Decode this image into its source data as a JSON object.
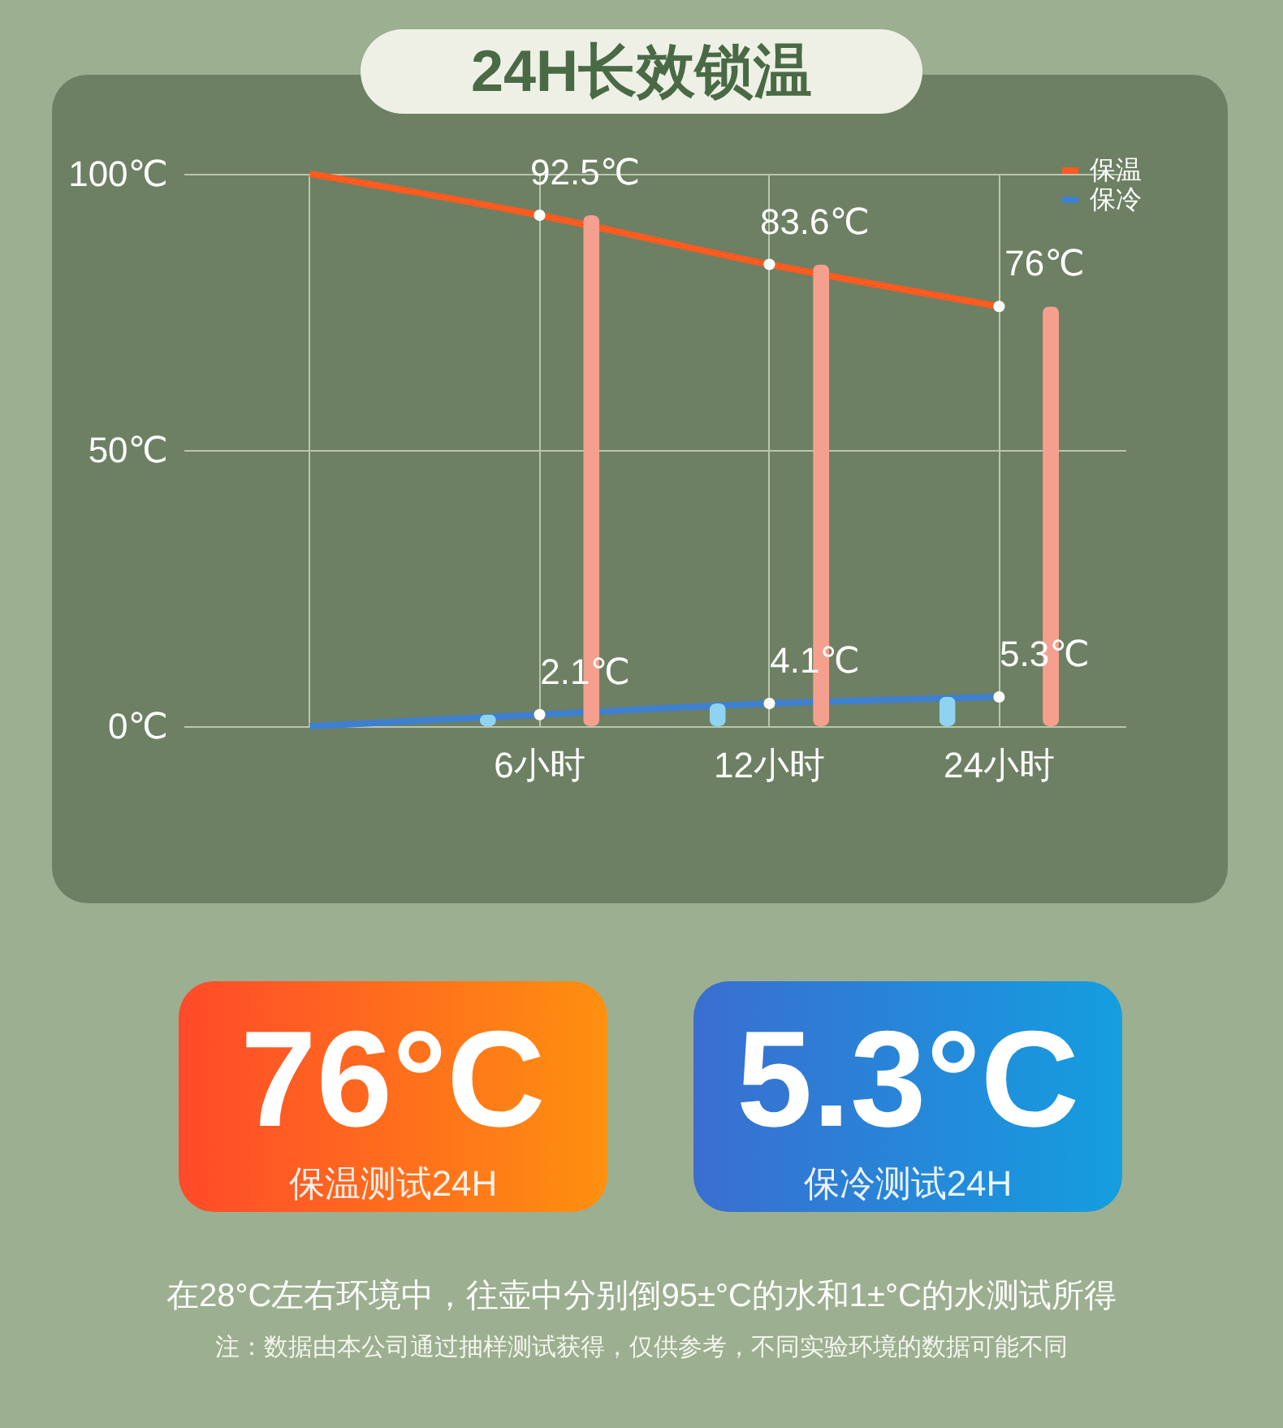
{
  "chart_data": {
    "type": "line",
    "title": "24H长效锁温",
    "categories": [
      null,
      "6小时",
      "12小时",
      "24小时"
    ],
    "series": [
      {
        "name": "保温",
        "color": "#ff5a1f",
        "values": [
          100,
          92.5,
          83.6,
          76
        ],
        "value_labels": [
          null,
          "92.5℃",
          "83.6℃",
          "76℃"
        ]
      },
      {
        "name": "保冷",
        "color": "#3f7fd0",
        "values": [
          0,
          2.1,
          4.1,
          5.3
        ],
        "value_labels": [
          null,
          "2.1℃",
          "4.1℃",
          "5.3℃"
        ]
      },
      {
        "type": "bar",
        "color": "#8fd3f0",
        "values": [
          null,
          2.1,
          4.1,
          5.3
        ]
      },
      {
        "type": "bar",
        "color": "#f5a08e",
        "values": [
          null,
          92.5,
          83.6,
          76
        ]
      }
    ],
    "ylim": [
      0,
      100
    ],
    "yticks": [
      {
        "value": 0,
        "label": "0℃"
      },
      {
        "value": 50,
        "label": "50℃"
      },
      {
        "value": 100,
        "label": "100℃"
      }
    ],
    "grid": true,
    "legend": "top right",
    "annotations": [
      "76°C",
      "保温测试24H",
      "5.3°C",
      "保冷测试24H",
      "在28°C左右环境中，往壶中分别倒95±°C的水和1±°C的水测试所得",
      "注：数据由本公司通过抽样测试获得，仅供参考，不同实验环境的数据可能不同"
    ]
  }
}
